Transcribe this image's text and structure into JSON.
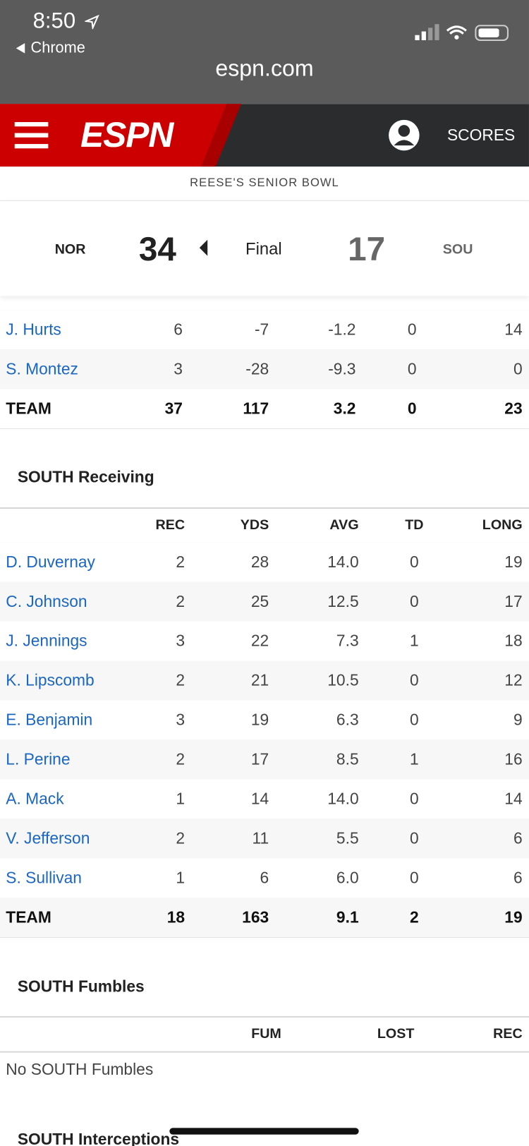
{
  "status_bar": {
    "time": "8:50",
    "back": "Chrome",
    "url": "espn.com"
  },
  "nav": {
    "logo": "ESPN",
    "scores": "SCORES"
  },
  "game": {
    "event": "REESE'S SENIOR BOWL",
    "home_team": "NOR",
    "home_score": "34",
    "status": "Final",
    "away_score": "17",
    "away_team": "SOU"
  },
  "rushing": {
    "rows": [
      [
        "J. Hurts",
        "6",
        "-7",
        "-1.2",
        "0",
        "14"
      ],
      [
        "S. Montez",
        "3",
        "-28",
        "-9.3",
        "0",
        "0"
      ]
    ],
    "team": [
      "TEAM",
      "37",
      "117",
      "3.2",
      "0",
      "23"
    ]
  },
  "receiving": {
    "title": "SOUTH Receiving",
    "headers": [
      "REC",
      "YDS",
      "AVG",
      "TD",
      "LONG"
    ],
    "rows": [
      [
        "D. Duvernay",
        "2",
        "28",
        "14.0",
        "0",
        "19"
      ],
      [
        "C. Johnson",
        "2",
        "25",
        "12.5",
        "0",
        "17"
      ],
      [
        "J. Jennings",
        "3",
        "22",
        "7.3",
        "1",
        "18"
      ],
      [
        "K. Lipscomb",
        "2",
        "21",
        "10.5",
        "0",
        "12"
      ],
      [
        "E. Benjamin",
        "3",
        "19",
        "6.3",
        "0",
        "9"
      ],
      [
        "L. Perine",
        "2",
        "17",
        "8.5",
        "1",
        "16"
      ],
      [
        "A. Mack",
        "1",
        "14",
        "14.0",
        "0",
        "14"
      ],
      [
        "V. Jefferson",
        "2",
        "11",
        "5.5",
        "0",
        "6"
      ],
      [
        "S. Sullivan",
        "1",
        "6",
        "6.0",
        "0",
        "6"
      ]
    ],
    "team": [
      "TEAM",
      "18",
      "163",
      "9.1",
      "2",
      "19"
    ]
  },
  "fumbles": {
    "title": "SOUTH Fumbles",
    "headers": [
      "FUM",
      "LOST",
      "REC"
    ],
    "message": "No SOUTH Fumbles"
  },
  "interceptions": {
    "title": "SOUTH Interceptions"
  }
}
